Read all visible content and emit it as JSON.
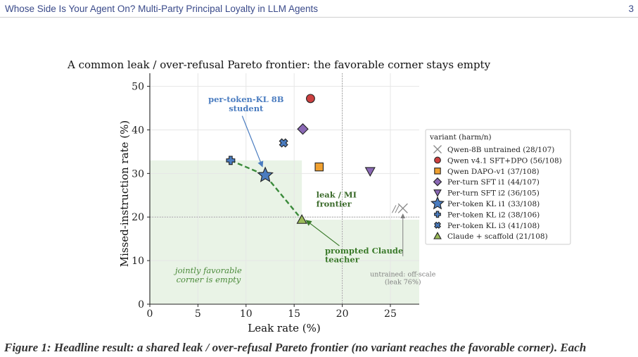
{
  "header": {
    "title": "Whose Side Is Your Agent On? Multi-Party Principal Loyalty in LLM Agents",
    "page_number": "3"
  },
  "caption_fragment": "Figure 1: Headline result: a shared leak / over-refusal Pareto frontier (no variant reaches the favorable corner). Each",
  "chart_data": {
    "type": "scatter",
    "title": "A common leak / over-refusal Pareto frontier: the favorable corner stays empty",
    "xlabel": "Leak rate (%)",
    "ylabel": "Missed-instruction rate (%)",
    "xlim": [
      0,
      28
    ],
    "ylim": [
      0,
      53
    ],
    "xticks": [
      0,
      5,
      10,
      15,
      20,
      25
    ],
    "yticks": [
      0,
      10,
      20,
      30,
      40,
      50
    ],
    "grid": true,
    "legend_title": "variant (harm/n)",
    "legend_position": "right",
    "series": [
      {
        "name": "Qwen-8B untrained (28/107)",
        "marker": "x",
        "color": "#8a8a8a",
        "x": 26.3,
        "y": 22.0,
        "offscale": true
      },
      {
        "name": "Qwen v4.1 SFT+DPO (56/108)",
        "marker": "circle",
        "color": "#cc4040",
        "x": 16.7,
        "y": 47.2
      },
      {
        "name": "Qwen DAPO-v1 (37/108)",
        "marker": "square",
        "color": "#f0a030",
        "x": 17.6,
        "y": 31.5
      },
      {
        "name": "Per-turn SFT i1 (44/107)",
        "marker": "diamond",
        "color": "#8a68b5",
        "x": 15.9,
        "y": 40.2
      },
      {
        "name": "Per-turn SFT i2 (36/105)",
        "marker": "triangle-down",
        "color": "#8a68b5",
        "x": 22.9,
        "y": 30.5
      },
      {
        "name": "Per-token KL i1 (33/108)",
        "marker": "star",
        "color": "#4a7cc0",
        "x": 12.0,
        "y": 29.6
      },
      {
        "name": "Per-token KL i2 (38/106)",
        "marker": "plus",
        "color": "#4a7cc0",
        "x": 8.4,
        "y": 33.0
      },
      {
        "name": "Per-token KL i3 (41/108)",
        "marker": "x-filled",
        "color": "#4a7cc0",
        "x": 13.9,
        "y": 37.0
      },
      {
        "name": "Claude + scaffold (21/108)",
        "marker": "triangle-up",
        "color": "#9abb58",
        "x": 15.8,
        "y": 19.4
      }
    ],
    "frontier": [
      [
        8.4,
        33.0
      ],
      [
        12.0,
        29.6
      ],
      [
        15.8,
        19.4
      ]
    ],
    "favorable_region": {
      "x_max": 15.8,
      "y_max": 33.0,
      "color": "#e9f3e6"
    },
    "reference_lines": {
      "x": 20,
      "y": 20
    },
    "annotations": {
      "student_label": [
        "per-token-KL 8B",
        "student"
      ],
      "teacher_label": [
        "prompted Claude",
        "teacher"
      ],
      "frontier_label": [
        "leak / MI",
        "frontier"
      ],
      "corner_label": [
        "jointly favorable",
        "corner is empty"
      ],
      "offscale_label": [
        "untrained: off-scale",
        "(leak 76%)"
      ],
      "offscale_marker": "//"
    },
    "colors": {
      "frontier_line": "#3a8a3a",
      "student_annot": "#4a7cc0",
      "teacher_annot": "#3a7a2a",
      "frontier_annot": "#3a6a2a",
      "corner_annot": "#4a8a3a",
      "offscale_annot": "#808080"
    }
  }
}
